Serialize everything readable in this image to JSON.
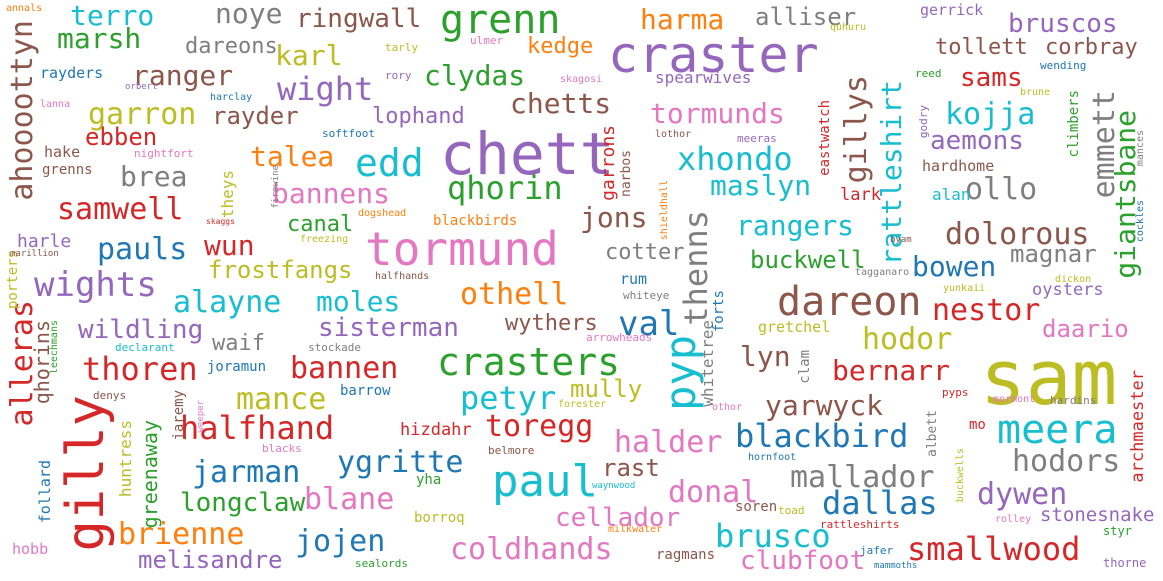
{
  "palette": {
    "blue": "#1f77b4",
    "orange": "#ff7f0e",
    "green": "#2ca02c",
    "red": "#d62728",
    "purple": "#9467bd",
    "brown": "#8c564b",
    "pink": "#e377c2",
    "gray": "#7f7f7f",
    "olive": "#bcbd22",
    "cyan": "#17becf"
  },
  "words": [
    "sam",
    "gilly",
    "chett",
    "craster",
    "tormund",
    "crasters",
    "grenn",
    "paul",
    "dareon",
    "pyp",
    "meera",
    "edd",
    "thenns",
    "blackbird",
    "xhondo",
    "qhorin",
    "alleras",
    "ahoooottyn",
    "smallwood",
    "hodors",
    "jojen",
    "ygritte",
    "coldhands",
    "dallas",
    "rattleshirt",
    "giantsbane",
    "harma",
    "marsh",
    "terro",
    "noye",
    "ringwall",
    "alliser",
    "bruscos",
    "tollett",
    "corbray",
    "karl",
    "dareons",
    "kedge",
    "clydas",
    "ranger",
    "wight",
    "garron",
    "rayder",
    "lophand",
    "chetts",
    "tormunds",
    "gillys",
    "sams",
    "kojja",
    "aemons",
    "emmett",
    "ebben",
    "talea",
    "brea",
    "bannens",
    "maslyn",
    "ollo",
    "samwell",
    "jons",
    "rangers",
    "dolorous",
    "pauls",
    "wun",
    "canal",
    "buckwell",
    "magnar",
    "bowen",
    "wights",
    "frostfangs",
    "othell",
    "nestor",
    "alayne",
    "moles",
    "val",
    "daario",
    "wildling",
    "sisterman",
    "wythers",
    "hodor",
    "waif",
    "thoren",
    "bannen",
    "lyn",
    "bernarr",
    "mance",
    "petyr",
    "mully",
    "yarwyck",
    "halfhand",
    "toregg",
    "halder",
    "jarman",
    "rast",
    "mallador",
    "donal",
    "dywen",
    "blane",
    "longclaw",
    "brienne",
    "cellador",
    "brusco",
    "melisandre",
    "clubfoot",
    "hizdahr",
    "qhorins",
    "greenaway",
    "archmaester",
    "stonesnake",
    "garrons",
    "eastwatch",
    "hardhome",
    "climbers",
    "lark",
    "alan",
    "harle",
    "theys",
    "whitetree",
    "forts",
    "gretchel",
    "huntress",
    "follard",
    "jaremy",
    "barrow",
    "joramun",
    "porters",
    "leechmans",
    "albett",
    "gerrick",
    "quhuru",
    "tarly",
    "ulmer",
    "skagosi",
    "spearwives",
    "reed",
    "wending",
    "brune",
    "annals",
    "rayders",
    "orbert",
    "harclay",
    "rory",
    "lanna",
    "softfoot",
    "lothor",
    "meeras",
    "godry",
    "hake",
    "nightfort",
    "grenns",
    "mances",
    "cockles",
    "firewine",
    "skaggs",
    "dogshead",
    "blackbirds",
    "shieldhall",
    "narbos",
    "freezing",
    "marillion",
    "halfhands",
    "cotter",
    "rum",
    "whiteye",
    "tagganaro",
    "byam",
    "dickon",
    "yunkaii",
    "oysters",
    "declarant",
    "stockade",
    "arrowheads",
    "clam",
    "pyps",
    "mormont",
    "hardins",
    "denys",
    "weeper",
    "forester",
    "othor",
    "mo",
    "blacks",
    "belmore",
    "hornfoot",
    "yha",
    "waynwood",
    "buckwells",
    "soren",
    "toad",
    "rolley",
    "borroq",
    "milkwater",
    "ragmans",
    "rattleshirts",
    "jafer",
    "styr",
    "hobb",
    "sealords",
    "mammoths",
    "thorne"
  ]
}
